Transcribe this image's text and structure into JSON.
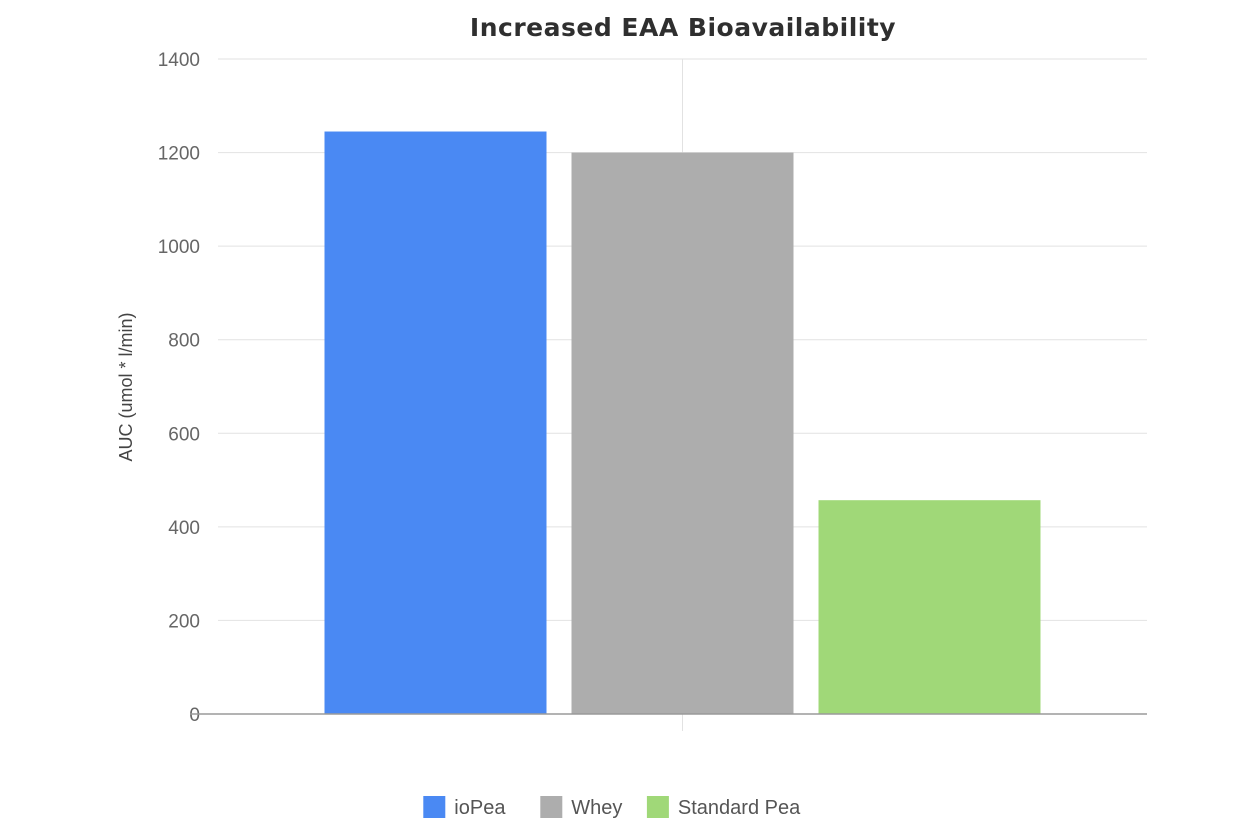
{
  "chart_data": {
    "type": "bar",
    "title": "Increased EAA Bioavailability",
    "xlabel": "",
    "ylabel": "AUC (umol * l/min)",
    "ylim": [
      0,
      1400
    ],
    "yticks": [
      0,
      200,
      400,
      600,
      800,
      1000,
      1200,
      1400
    ],
    "grid": true,
    "legend_position": "bottom",
    "categories": [
      ""
    ],
    "series": [
      {
        "name": "ioPea",
        "values": [
          1245
        ],
        "color": "#4a89f3"
      },
      {
        "name": "Whey",
        "values": [
          1200
        ],
        "color": "#adadad"
      },
      {
        "name": "Standard Pea",
        "values": [
          457
        ],
        "color": "#a0d878"
      }
    ]
  }
}
